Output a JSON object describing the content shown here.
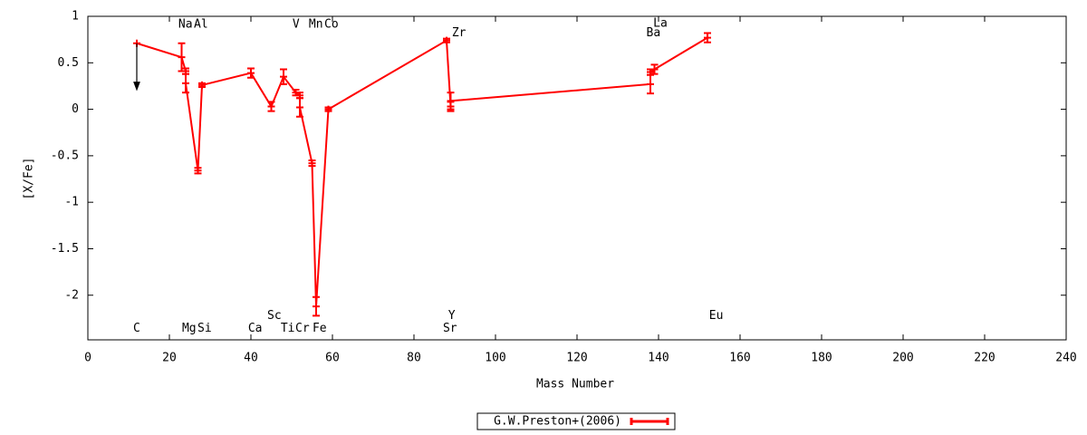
{
  "chart_data": {
    "type": "line",
    "xlabel": "Mass Number",
    "ylabel": "[X/Fe]",
    "xlim": [
      0,
      240
    ],
    "xticks": [
      0,
      20,
      40,
      60,
      80,
      100,
      120,
      140,
      160,
      180,
      200,
      220,
      240
    ],
    "ylim": [
      -2.48,
      1
    ],
    "yticks": [
      -2,
      -1.5,
      -1,
      -0.5,
      0,
      0.5,
      1
    ],
    "legend": "bottom",
    "series": [
      {
        "name": "G.W.Preston+(2006)",
        "color": "#ff0000",
        "x": [
          12,
          23,
          24,
          24,
          27,
          28,
          40,
          45,
          48,
          51,
          52,
          52,
          55,
          56,
          59,
          88,
          89,
          89,
          138,
          138,
          139,
          152
        ],
        "values": [
          0.71,
          0.56,
          0.41,
          0.28,
          -0.66,
          0.26,
          0.39,
          0.03,
          0.35,
          0.18,
          0.15,
          0.02,
          -0.58,
          -2.12,
          0.0,
          0.74,
          0.03,
          0.09,
          0.27,
          0.4,
          0.43,
          0.77
        ],
        "errors": [
          null,
          0.15,
          0.03,
          0.1,
          0.03,
          0.02,
          0.05,
          0.05,
          0.08,
          0.03,
          0.03,
          0.1,
          0.03,
          0.1,
          0.02,
          0.02,
          0.05,
          0.09,
          0.1,
          0.03,
          0.05,
          0.05
        ],
        "upper_limit": [
          true,
          false,
          false,
          false,
          false,
          false,
          false,
          false,
          false,
          false,
          false,
          false,
          false,
          false,
          false,
          false,
          false,
          false,
          false,
          false,
          false,
          false
        ]
      }
    ],
    "annotations": [
      {
        "text": "C",
        "x": 11.1,
        "y": -2.36
      },
      {
        "text": "Na",
        "x": 22.2,
        "y": 0.91
      },
      {
        "text": "Al",
        "x": 26,
        "y": 0.91
      },
      {
        "text": "Mg",
        "x": 23.1,
        "y": -2.36
      },
      {
        "text": "Si",
        "x": 26.9,
        "y": -2.36
      },
      {
        "text": "Ca",
        "x": 39.3,
        "y": -2.36
      },
      {
        "text": "Sc",
        "x": 44,
        "y": -2.22
      },
      {
        "text": "Ti",
        "x": 47.3,
        "y": -2.36
      },
      {
        "text": "Cr",
        "x": 50.9,
        "y": -2.36
      },
      {
        "text": "Fe",
        "x": 55.1,
        "y": -2.36
      },
      {
        "text": "V",
        "x": 50.2,
        "y": 0.91
      },
      {
        "text": "Mn",
        "x": 54.2,
        "y": 0.91
      },
      {
        "text": "Co",
        "x": 58,
        "y": 0.91
      },
      {
        "text": "Zr",
        "x": 89.3,
        "y": 0.82
      },
      {
        "text": "Y",
        "x": 88.4,
        "y": -2.22
      },
      {
        "text": "Sr",
        "x": 87.1,
        "y": -2.36
      },
      {
        "text": "La",
        "x": 138.7,
        "y": 0.92
      },
      {
        "text": "Ba",
        "x": 137,
        "y": 0.82
      },
      {
        "text": "Eu",
        "x": 152.4,
        "y": -2.22
      }
    ]
  }
}
